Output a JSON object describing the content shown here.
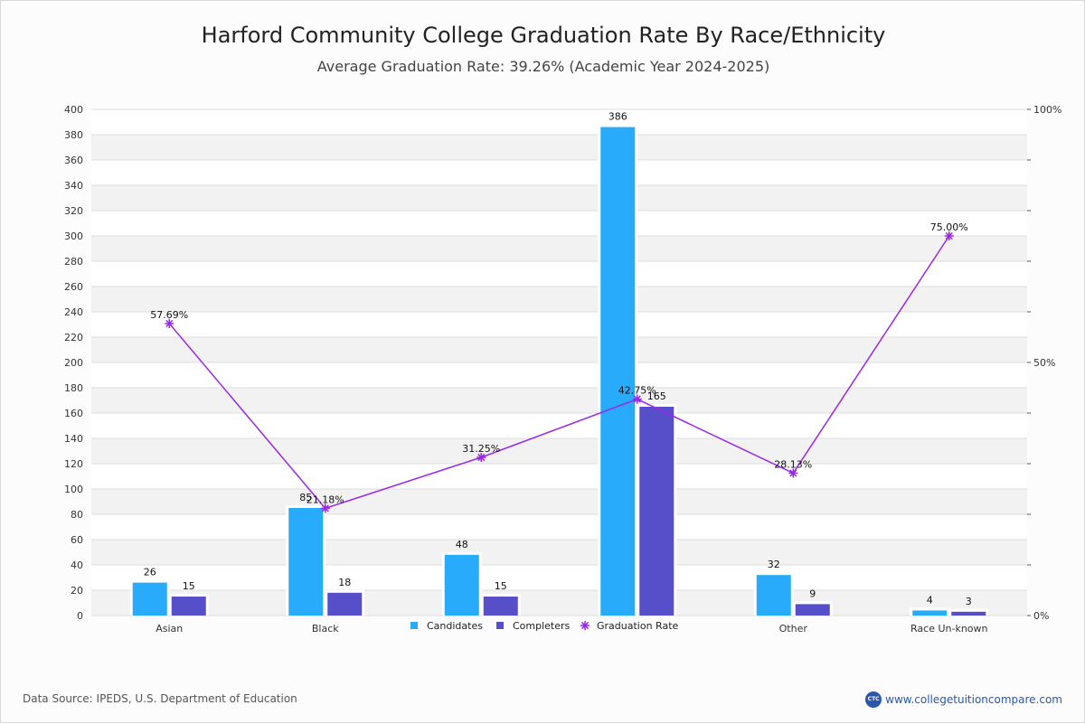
{
  "colors": {
    "candidates": "#29abfc",
    "completers": "#574fca",
    "rate": "#9b27e6",
    "band": "#f2f2f2",
    "grid": "#dddddd"
  },
  "footer": {
    "source": "Data Source: IPEDS, U.S. Department of Education",
    "brand_logo": "CTC",
    "brand_text": "www.collegetuitioncompare.com"
  },
  "chart_data": {
    "type": "bar",
    "title": "Harford Community College Graduation Rate By Race/Ethnicity",
    "subtitle": "Average Graduation Rate: 39.26% (Academic Year 2024-2025)",
    "categories": [
      "Asian",
      "Black",
      "",
      "",
      "Other",
      "Race Un-known"
    ],
    "series": [
      {
        "name": "Candidates",
        "values": [
          26,
          85,
          48,
          386,
          32,
          4
        ],
        "labels": [
          "26",
          "85",
          "48",
          "386",
          "32",
          "4"
        ]
      },
      {
        "name": "Completers",
        "values": [
          15,
          18,
          15,
          165,
          9,
          3
        ],
        "labels": [
          "15",
          "18",
          "15",
          "165",
          "9",
          "3"
        ]
      }
    ],
    "line_series": {
      "name": "Graduation Rate",
      "values": [
        57.69,
        21.18,
        31.25,
        42.75,
        28.13,
        75.0
      ],
      "labels": [
        "57.69%",
        "21.18%",
        "31.25%",
        "42.75%",
        "28.13%",
        "75.00%"
      ]
    },
    "ylim": [
      0,
      400
    ],
    "y_ticks": [
      "0",
      "20",
      "40",
      "60",
      "80",
      "100",
      "120",
      "140",
      "160",
      "180",
      "200",
      "220",
      "240",
      "260",
      "280",
      "300",
      "320",
      "340",
      "360",
      "380",
      "400"
    ],
    "y2lim": [
      0,
      100
    ],
    "y2_ticks": [
      "0%",
      "50%",
      "100%"
    ],
    "legend": [
      "Candidates",
      "Completers",
      "Graduation Rate"
    ],
    "legend_position": "bottom-center",
    "grid": true
  }
}
